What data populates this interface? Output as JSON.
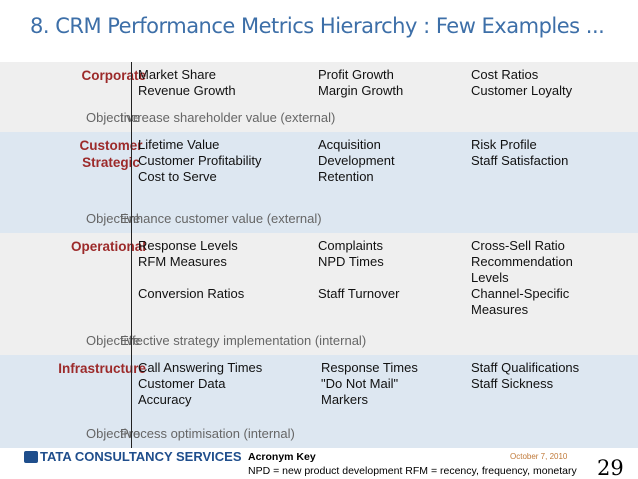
{
  "header": {
    "title": "8. CRM Performance Metrics Hierarchy : Few Examples ..."
  },
  "levels": [
    {
      "label": "Corporate",
      "columns": [
        [
          "Market Share",
          "Revenue Growth"
        ],
        [
          "Profit Growth",
          "Margin Growth"
        ],
        [
          "Cost Ratios",
          "Customer Loyalty"
        ]
      ],
      "objective_label": "Objective",
      "objective": "Increase shareholder value (external)"
    },
    {
      "label": "Customer Strategic",
      "columns": [
        [
          "Lifetime Value",
          "Customer Profitability",
          "Cost to Serve"
        ],
        [
          "Acquisition",
          "Development",
          "Retention"
        ],
        [
          "Risk Profile",
          "Staff Satisfaction"
        ]
      ],
      "objective_label": "Objective",
      "objective": "Enhance customer value (external)"
    },
    {
      "label": "Operational",
      "columns": [
        [
          "Response Levels",
          "RFM Measures",
          "Conversion Ratios"
        ],
        [
          "Complaints",
          "NPD Times",
          "Staff Turnover"
        ],
        [
          "Cross-Sell Ratio",
          "Recommendation Levels",
          "Channel-Specific Measures"
        ]
      ],
      "objective_label": "Objective",
      "objective": "Effective strategy implementation (internal)"
    },
    {
      "label": "Infrastructure",
      "columns": [
        [
          "Call Answering Times",
          "Customer Data",
          "Accuracy"
        ],
        [
          "Response Times",
          "\"Do Not Mail\"",
          "Markers"
        ],
        [
          "Staff Qualifications",
          "Staff Sickness"
        ]
      ],
      "objective_label": "Objective",
      "objective": "Process optimisation (internal)"
    }
  ],
  "footer": {
    "logo": "TATA CONSULTANCY SERVICES",
    "acronym_title": "Acronym Key",
    "acronym_text": "NPD = new product development RFM = recency, frequency, monetary",
    "date": "October 7, 2010",
    "page": "29"
  }
}
